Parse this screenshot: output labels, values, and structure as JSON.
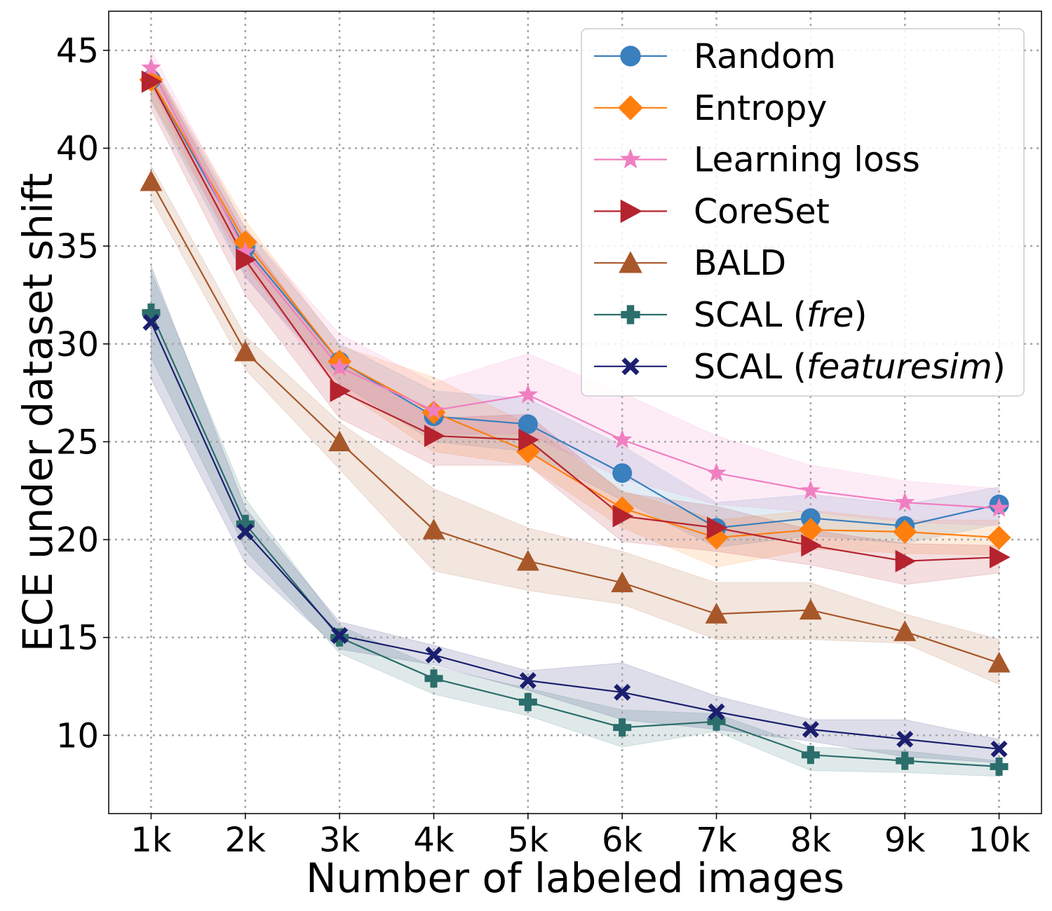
{
  "chart_data": {
    "type": "line",
    "title": "",
    "xlabel": "Number of labeled images",
    "ylabel": "ECE under dataset shift",
    "x_tick_labels": [
      "1k",
      "2k",
      "3k",
      "4k",
      "5k",
      "6k",
      "7k",
      "8k",
      "9k",
      "10k"
    ],
    "x": [
      1,
      2,
      3,
      4,
      5,
      6,
      7,
      8,
      9,
      10
    ],
    "yticks": [
      10,
      15,
      20,
      25,
      30,
      35,
      40,
      45
    ],
    "ylim": [
      6,
      47
    ],
    "xlim": [
      0.55,
      10.45
    ],
    "grid": true,
    "legend_position": "top-right",
    "series": [
      {
        "name": "Random",
        "plain": "Random",
        "italic": "",
        "close": "",
        "color": "#3a7fbe",
        "marker": "circle",
        "values": [
          43.5,
          34.9,
          29.1,
          26.3,
          25.9,
          23.4,
          20.6,
          21.1,
          20.7,
          21.8
        ],
        "lower": [
          42.4,
          33.4,
          28.0,
          25.0,
          24.5,
          22.0,
          19.6,
          20.2,
          19.8,
          20.8
        ],
        "upper": [
          44.4,
          35.9,
          30.0,
          27.6,
          27.2,
          24.8,
          21.9,
          22.3,
          21.8,
          22.7
        ]
      },
      {
        "name": "Entropy",
        "plain": "Entropy",
        "italic": "",
        "close": "",
        "color": "#ff7f0e",
        "marker": "diamond",
        "values": [
          43.5,
          35.2,
          29.1,
          26.5,
          24.5,
          21.6,
          20.1,
          20.5,
          20.4,
          20.1
        ],
        "lower": [
          42.5,
          34.0,
          27.7,
          24.5,
          23.8,
          20.6,
          18.6,
          19.5,
          19.3,
          19.2
        ],
        "upper": [
          44.4,
          36.3,
          29.9,
          28.3,
          25.9,
          22.5,
          21.0,
          21.5,
          21.0,
          21.0
        ]
      },
      {
        "name": "Learning loss",
        "plain": "Learning loss",
        "italic": "",
        "close": "",
        "color": "#f07fc1",
        "marker": "star",
        "values": [
          44.1,
          34.7,
          28.8,
          26.6,
          27.4,
          25.1,
          23.4,
          22.5,
          21.9,
          21.6
        ],
        "lower": [
          43.2,
          33.5,
          27.6,
          25.4,
          25.4,
          23.1,
          21.8,
          21.4,
          20.9,
          20.7
        ],
        "upper": [
          45.0,
          35.9,
          30.5,
          28.0,
          29.5,
          27.5,
          25.3,
          23.8,
          23.0,
          22.6
        ]
      },
      {
        "name": "CoreSet",
        "plain": "CoreSet",
        "italic": "",
        "close": "",
        "color": "#b5232f",
        "marker": "triangle-right",
        "values": [
          43.4,
          34.3,
          27.6,
          25.3,
          25.1,
          21.2,
          20.6,
          19.7,
          18.9,
          19.1
        ],
        "lower": [
          42.0,
          32.5,
          26.2,
          23.8,
          23.8,
          19.9,
          19.4,
          18.7,
          17.7,
          18.3
        ],
        "upper": [
          44.3,
          35.5,
          29.0,
          26.2,
          26.4,
          22.4,
          21.7,
          20.5,
          19.8,
          19.7
        ]
      },
      {
        "name": "BALD",
        "plain": "BALD",
        "italic": "",
        "close": "",
        "color": "#a8572a",
        "marker": "triangle-up",
        "values": [
          38.3,
          29.6,
          25.0,
          20.5,
          18.9,
          17.8,
          16.2,
          16.4,
          15.3,
          13.7
        ],
        "lower": [
          37.4,
          28.7,
          23.6,
          18.4,
          17.4,
          16.7,
          14.9,
          14.9,
          14.7,
          12.6
        ],
        "upper": [
          39.1,
          30.4,
          26.0,
          22.6,
          20.6,
          19.4,
          17.8,
          17.8,
          16.2,
          14.9
        ]
      },
      {
        "name": "SCAL (fre)",
        "plain": "SCAL (",
        "italic": "fre",
        "close": ")",
        "color": "#2b6e6b",
        "marker": "plus",
        "values": [
          31.6,
          20.8,
          15.0,
          12.9,
          11.7,
          10.4,
          10.7,
          9.0,
          8.7,
          8.4
        ],
        "lower": [
          29.3,
          19.5,
          14.2,
          12.1,
          11.0,
          9.4,
          10.2,
          8.2,
          8.1,
          7.9
        ],
        "upper": [
          33.7,
          22.1,
          15.6,
          13.5,
          12.4,
          11.3,
          11.1,
          9.4,
          9.2,
          8.7
        ]
      },
      {
        "name": "SCAL (featuresim)",
        "plain": "SCAL (",
        "italic": "featuresim",
        "close": ")",
        "color": "#1b1f6e",
        "marker": "x",
        "values": [
          31.1,
          20.4,
          15.1,
          14.1,
          12.8,
          12.2,
          11.2,
          10.3,
          9.8,
          9.3
        ],
        "lower": [
          28.2,
          18.8,
          14.4,
          13.6,
          12.3,
          10.8,
          10.3,
          9.7,
          8.9,
          8.6
        ],
        "upper": [
          34.0,
          21.6,
          15.8,
          14.6,
          13.3,
          13.7,
          12.0,
          10.8,
          10.8,
          9.8
        ]
      }
    ]
  }
}
